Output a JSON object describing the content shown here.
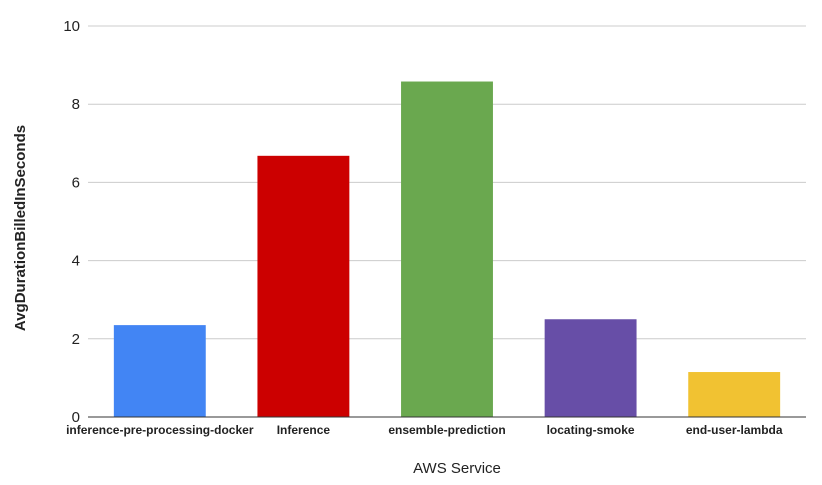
{
  "chart_data": {
    "type": "bar",
    "categories": [
      "inference-pre-processing-docker",
      "Inference",
      "ensemble-prediction",
      "locating-smoke",
      "end-user-lambda"
    ],
    "values": [
      2.35,
      6.68,
      8.58,
      2.5,
      1.15
    ],
    "colors": [
      "#4285f4",
      "#cc0000",
      "#6aa84f",
      "#674ea7",
      "#f1c232"
    ],
    "xlabel": "AWS Service",
    "ylabel": "AvgDurationBilledInSeconds",
    "ylim": [
      0,
      10
    ],
    "yticks": [
      "0",
      "2",
      "4",
      "6",
      "8",
      "10"
    ],
    "grid": true,
    "legend": "none"
  }
}
